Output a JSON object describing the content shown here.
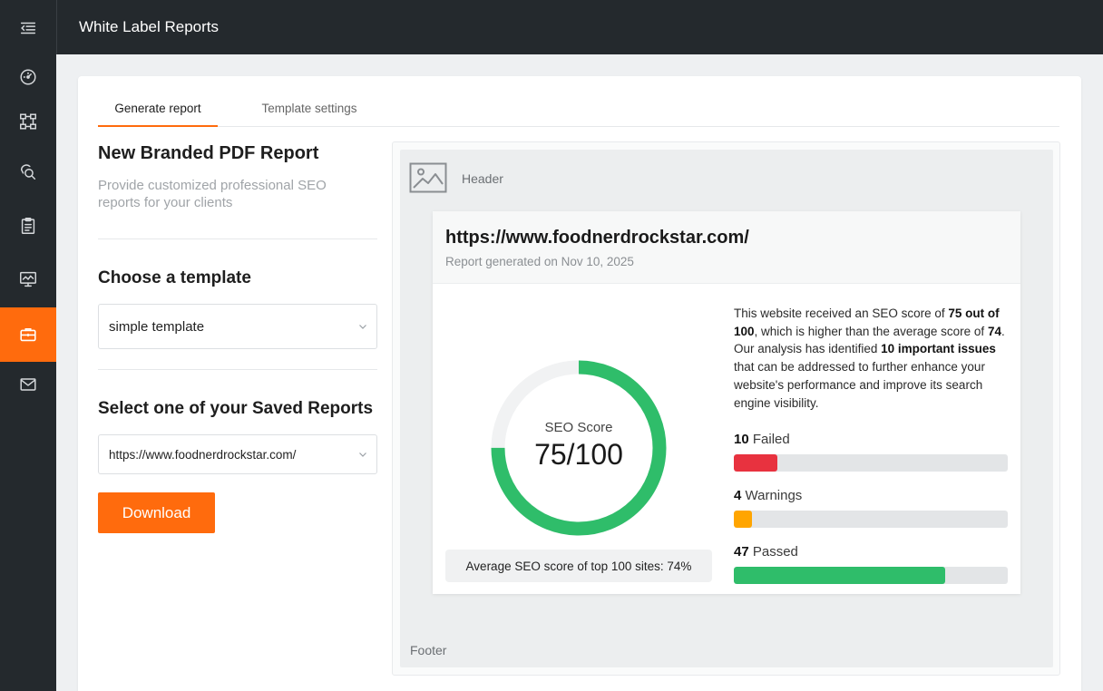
{
  "app": {
    "title": "White Label Reports"
  },
  "tabs": [
    "Generate report",
    "Template settings"
  ],
  "form": {
    "heading": "New Branded PDF Report",
    "subheading": "Provide customized professional SEO reports for your clients",
    "template_heading": "Choose a template",
    "template_value": "simple template",
    "saved_heading": "Select one of your Saved Reports",
    "saved_value": "https://www.foodnerdrockstar.com/",
    "download_label": "Download"
  },
  "preview": {
    "header_label": "Header",
    "footer_label": "Footer",
    "report": {
      "url": "https://www.foodnerdrockstar.com/",
      "generated": "Report generated on Nov 10, 2025",
      "score_label": "SEO Score",
      "score_value": "75/100",
      "score_fraction": 0.75,
      "average_text": "Average SEO score of top 100 sites: 74%",
      "summary": {
        "p1": "This website received an SEO score of ",
        "b1": "75 out of 100",
        "p2": ", which is higher than the average score of ",
        "b2": "74",
        "p3": ". Our analysis has identified ",
        "b3": "10 important issues",
        "p4": " that can be addressed to further enhance your website's performance and improve its search engine visibility."
      },
      "metrics": [
        {
          "count": "10",
          "label": " Failed",
          "fraction": 0.16,
          "color": "#e8323f"
        },
        {
          "count": "4",
          "label": " Warnings",
          "fraction": 0.065,
          "color": "#ffa500"
        },
        {
          "count": "47",
          "label": " Passed",
          "fraction": 0.77,
          "color": "#2fbd6a"
        }
      ]
    }
  },
  "colors": {
    "accent": "#ff6b0d",
    "sidebar": "#24292d",
    "success": "#2fbd6a"
  },
  "icons": [
    "menu-collapse-icon",
    "speedometer-icon",
    "sitemap-icon",
    "keyword-research-icon",
    "clipboard-icon",
    "monitor-chart-icon",
    "briefcase-icon",
    "mail-icon",
    "image-placeholder-icon",
    "chevron-down-icon"
  ]
}
